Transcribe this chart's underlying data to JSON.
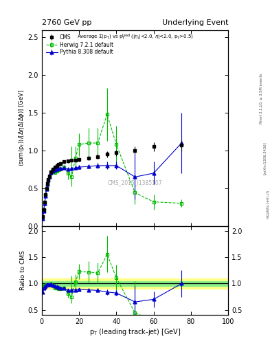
{
  "title_left": "2760 GeV pp",
  "title_right": "Underlying Event",
  "subtitle": "Average Σ(p_T) vs p_T^{lead} (|η_l|<2.0, η|<2.0, p_T>0.5)",
  "ylabel_main": "⟨sum(p_T)⟩/[ΔηΔ(Δφ)] [GeV]",
  "ylabel_ratio": "Ratio to CMS",
  "xlabel": "p_T (leading track-jet) [GeV]",
  "watermark": "CMS_2015_I1385107",
  "rivet_label": "Rivet 3.1.10, ≥ 3.5M events",
  "arxiv_label": "[arXiv:1306.3436]",
  "mcplots_label": "mcplots.cern.ch",
  "cms_x": [
    0.5,
    1.0,
    1.5,
    2.0,
    2.5,
    3.0,
    3.5,
    4.0,
    5.0,
    6.0,
    7.0,
    8.0,
    9.0,
    10.0,
    12.0,
    14.0,
    16.0,
    18.0,
    20.0,
    25.0,
    30.0,
    35.0,
    40.0,
    50.0,
    60.0,
    75.0
  ],
  "cms_y": [
    0.12,
    0.22,
    0.32,
    0.42,
    0.5,
    0.56,
    0.62,
    0.66,
    0.72,
    0.75,
    0.78,
    0.8,
    0.82,
    0.83,
    0.85,
    0.86,
    0.87,
    0.875,
    0.88,
    0.9,
    0.92,
    0.95,
    0.97,
    1.0,
    1.05,
    1.07
  ],
  "cms_yerr": [
    0.01,
    0.01,
    0.02,
    0.02,
    0.02,
    0.02,
    0.02,
    0.02,
    0.02,
    0.02,
    0.02,
    0.02,
    0.02,
    0.02,
    0.02,
    0.02,
    0.02,
    0.02,
    0.03,
    0.03,
    0.03,
    0.04,
    0.04,
    0.05,
    0.06,
    0.08
  ],
  "herwig_x": [
    0.5,
    1.0,
    1.5,
    2.0,
    2.5,
    3.0,
    3.5,
    4.0,
    5.0,
    6.0,
    7.0,
    8.0,
    9.0,
    10.0,
    12.0,
    14.0,
    16.0,
    18.0,
    20.0,
    25.0,
    30.0,
    35.0,
    40.0,
    50.0,
    60.0,
    75.0
  ],
  "herwig_y": [
    0.11,
    0.21,
    0.31,
    0.4,
    0.49,
    0.55,
    0.61,
    0.65,
    0.71,
    0.73,
    0.71,
    0.73,
    0.74,
    0.75,
    0.78,
    0.7,
    0.65,
    0.9,
    1.08,
    1.1,
    1.1,
    1.48,
    1.08,
    0.44,
    0.32,
    0.3
  ],
  "herwig_yerr_lo": [
    0.01,
    0.01,
    0.02,
    0.02,
    0.02,
    0.02,
    0.02,
    0.02,
    0.02,
    0.02,
    0.02,
    0.02,
    0.02,
    0.02,
    0.03,
    0.08,
    0.12,
    0.15,
    0.15,
    0.2,
    0.2,
    0.35,
    0.25,
    0.15,
    0.1,
    0.05
  ],
  "herwig_yerr_hi": [
    0.01,
    0.01,
    0.02,
    0.02,
    0.02,
    0.02,
    0.02,
    0.02,
    0.02,
    0.02,
    0.02,
    0.02,
    0.02,
    0.02,
    0.03,
    0.08,
    0.4,
    0.15,
    0.15,
    0.2,
    0.2,
    0.35,
    0.25,
    0.15,
    0.1,
    0.05
  ],
  "pythia_x": [
    0.5,
    1.0,
    1.5,
    2.0,
    2.5,
    3.0,
    3.5,
    4.0,
    5.0,
    6.0,
    7.0,
    8.0,
    9.0,
    10.0,
    12.0,
    14.0,
    16.0,
    18.0,
    20.0,
    25.0,
    30.0,
    35.0,
    40.0,
    50.0,
    60.0,
    75.0
  ],
  "pythia_y": [
    0.1,
    0.2,
    0.3,
    0.4,
    0.49,
    0.55,
    0.61,
    0.65,
    0.71,
    0.73,
    0.74,
    0.75,
    0.76,
    0.76,
    0.77,
    0.75,
    0.76,
    0.77,
    0.78,
    0.79,
    0.8,
    0.8,
    0.8,
    0.65,
    0.7,
    1.1
  ],
  "pythia_yerr_lo": [
    0.01,
    0.01,
    0.02,
    0.02,
    0.02,
    0.02,
    0.02,
    0.02,
    0.02,
    0.02,
    0.02,
    0.02,
    0.02,
    0.02,
    0.02,
    0.02,
    0.02,
    0.03,
    0.03,
    0.03,
    0.04,
    0.05,
    0.05,
    0.3,
    0.15,
    0.4
  ],
  "pythia_yerr_hi": [
    0.01,
    0.01,
    0.02,
    0.02,
    0.02,
    0.02,
    0.02,
    0.02,
    0.02,
    0.02,
    0.02,
    0.02,
    0.02,
    0.02,
    0.02,
    0.02,
    0.02,
    0.03,
    0.03,
    0.03,
    0.04,
    0.05,
    0.05,
    0.3,
    0.15,
    0.4
  ],
  "herwig_ratio_x": [
    0.5,
    1.0,
    1.5,
    2.0,
    2.5,
    3.0,
    3.5,
    4.0,
    5.0,
    6.0,
    7.0,
    8.0,
    9.0,
    10.0,
    12.0,
    14.0,
    16.0,
    18.0,
    20.0,
    25.0,
    30.0,
    35.0,
    40.0,
    50.0,
    60.0,
    75.0
  ],
  "herwig_ratio_y": [
    0.92,
    0.95,
    0.97,
    0.95,
    0.98,
    0.98,
    0.98,
    0.98,
    0.99,
    0.97,
    0.91,
    0.91,
    0.9,
    0.9,
    0.92,
    0.81,
    0.75,
    1.03,
    1.23,
    1.22,
    1.2,
    1.56,
    1.11,
    0.44,
    0.3,
    0.28
  ],
  "herwig_ratio_yerr_lo": [
    0.01,
    0.01,
    0.01,
    0.01,
    0.01,
    0.01,
    0.01,
    0.01,
    0.01,
    0.01,
    0.02,
    0.02,
    0.02,
    0.02,
    0.02,
    0.08,
    0.12,
    0.15,
    0.15,
    0.2,
    0.2,
    0.35,
    0.25,
    0.6,
    0.1,
    0.05
  ],
  "herwig_ratio_yerr_hi": [
    0.01,
    0.01,
    0.01,
    0.01,
    0.01,
    0.01,
    0.01,
    0.01,
    0.01,
    0.01,
    0.02,
    0.02,
    0.02,
    0.02,
    0.02,
    0.08,
    0.4,
    0.15,
    0.15,
    0.2,
    0.2,
    0.35,
    0.25,
    0.6,
    0.1,
    0.05
  ],
  "pythia_ratio_x": [
    0.5,
    1.0,
    1.5,
    2.0,
    2.5,
    3.0,
    3.5,
    4.0,
    5.0,
    6.0,
    7.0,
    8.0,
    9.0,
    10.0,
    12.0,
    14.0,
    16.0,
    18.0,
    20.0,
    25.0,
    30.0,
    35.0,
    40.0,
    50.0,
    60.0,
    75.0
  ],
  "pythia_ratio_y": [
    0.83,
    0.91,
    0.94,
    0.95,
    0.98,
    0.98,
    0.98,
    0.98,
    0.99,
    0.97,
    0.95,
    0.94,
    0.93,
    0.92,
    0.91,
    0.87,
    0.88,
    0.88,
    0.89,
    0.88,
    0.87,
    0.84,
    0.82,
    0.65,
    0.7,
    1.0
  ],
  "pythia_ratio_yerr_lo": [
    0.01,
    0.01,
    0.01,
    0.01,
    0.01,
    0.01,
    0.01,
    0.01,
    0.01,
    0.01,
    0.01,
    0.01,
    0.01,
    0.01,
    0.02,
    0.02,
    0.03,
    0.03,
    0.03,
    0.03,
    0.04,
    0.05,
    0.05,
    0.3,
    0.15,
    0.25
  ],
  "pythia_ratio_yerr_hi": [
    0.01,
    0.01,
    0.01,
    0.01,
    0.01,
    0.01,
    0.01,
    0.01,
    0.01,
    0.01,
    0.01,
    0.01,
    0.01,
    0.01,
    0.02,
    0.02,
    0.03,
    0.03,
    0.03,
    0.03,
    0.04,
    0.05,
    0.05,
    0.3,
    0.15,
    0.25
  ],
  "cms_color": "#000000",
  "herwig_color": "#00bb00",
  "pythia_color": "#0000cc",
  "band_yellow": "#ffff88",
  "band_green": "#88ee88",
  "xlim": [
    0,
    100
  ],
  "ylim_main": [
    0,
    2.6
  ],
  "ylim_ratio": [
    0.4,
    2.1
  ],
  "yticks_main": [
    0.0,
    0.5,
    1.0,
    1.5,
    2.0,
    2.5
  ],
  "yticks_ratio": [
    0.5,
    1.0,
    1.5,
    2.0
  ]
}
